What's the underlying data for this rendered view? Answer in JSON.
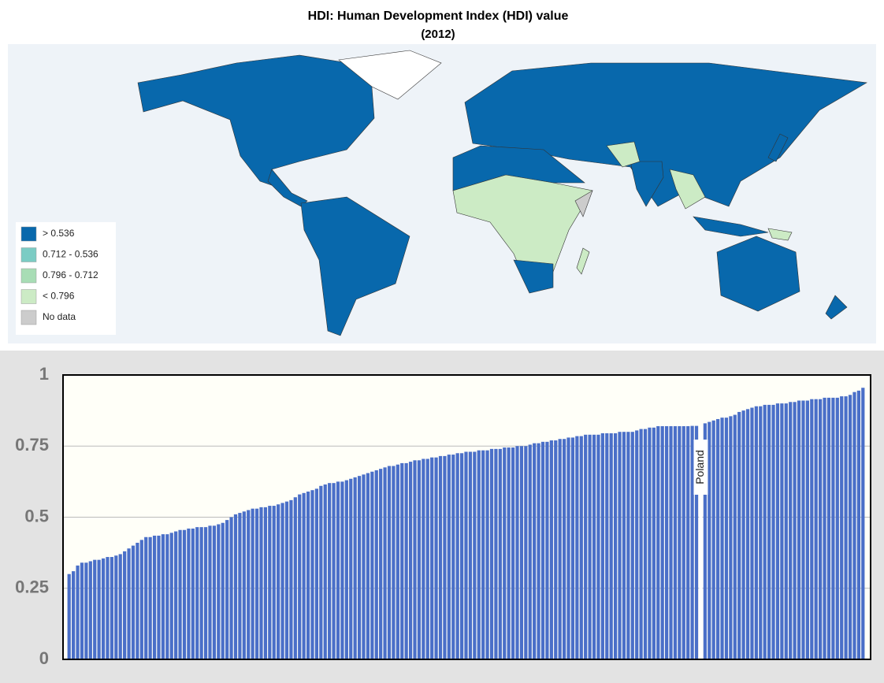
{
  "chart_data": [
    {
      "type": "map",
      "title": "HDI: Human Development Index (HDI) value",
      "subtitle": "(2012)",
      "legend": [
        {
          "label": "> 0.536",
          "color": "#0868ac"
        },
        {
          "label": "0.712 - 0.536",
          "color": "#7bccc4"
        },
        {
          "label": "0.796 - 0.712",
          "color": "#a8ddb5"
        },
        {
          "label": "< 0.796",
          "color": "#ccebc5"
        },
        {
          "label": "No data",
          "color": "#cccccc"
        }
      ]
    },
    {
      "type": "bar",
      "categories": [
        null,
        null,
        null,
        null,
        null,
        null,
        null,
        null,
        null,
        null,
        null,
        null,
        null,
        null,
        null,
        null,
        null,
        null,
        null,
        null,
        null,
        null,
        null,
        null,
        null,
        null,
        null,
        null,
        null,
        null,
        null,
        null,
        null,
        null,
        null,
        null,
        null,
        null,
        null,
        null,
        null,
        null,
        null,
        null,
        null,
        null,
        null,
        null,
        null,
        null,
        null,
        null,
        null,
        null,
        null,
        null,
        null,
        null,
        null,
        null,
        null,
        null,
        null,
        null,
        null,
        null,
        null,
        null,
        null,
        null,
        null,
        null,
        null,
        null,
        null,
        null,
        null,
        null,
        null,
        null,
        null,
        null,
        null,
        null,
        null,
        null,
        null,
        null,
        null,
        null,
        null,
        null,
        null,
        null,
        null,
        null,
        null,
        null,
        null,
        null,
        null,
        null,
        null,
        null,
        null,
        null,
        null,
        null,
        null,
        null,
        null,
        null,
        null,
        null,
        null,
        null,
        null,
        null,
        null,
        null,
        null,
        null,
        null,
        null,
        null,
        null,
        null,
        null,
        null,
        null,
        null,
        null,
        null,
        null,
        null,
        null,
        null,
        null,
        null,
        null,
        null,
        null,
        null,
        null,
        null,
        null,
        null,
        null,
        "Poland",
        null,
        null,
        null,
        null,
        null,
        null,
        null,
        null,
        null,
        null,
        null,
        null,
        null,
        null,
        null,
        null,
        null,
        null,
        null,
        null,
        null,
        null,
        null,
        null,
        null,
        null,
        null,
        null,
        null,
        null,
        null,
        null,
        null,
        null,
        null,
        null,
        null,
        null
      ],
      "values": [
        0.3,
        0.31,
        0.33,
        0.34,
        0.34,
        0.345,
        0.35,
        0.35,
        0.355,
        0.36,
        0.36,
        0.365,
        0.37,
        0.38,
        0.39,
        0.4,
        0.41,
        0.42,
        0.43,
        0.43,
        0.435,
        0.435,
        0.44,
        0.44,
        0.445,
        0.45,
        0.455,
        0.455,
        0.46,
        0.46,
        0.465,
        0.465,
        0.465,
        0.47,
        0.47,
        0.475,
        0.48,
        0.49,
        0.5,
        0.51,
        0.515,
        0.52,
        0.525,
        0.53,
        0.53,
        0.535,
        0.535,
        0.54,
        0.54,
        0.545,
        0.55,
        0.555,
        0.56,
        0.57,
        0.58,
        0.585,
        0.59,
        0.595,
        0.6,
        0.61,
        0.615,
        0.62,
        0.62,
        0.625,
        0.625,
        0.63,
        0.635,
        0.64,
        0.645,
        0.65,
        0.655,
        0.66,
        0.665,
        0.67,
        0.675,
        0.68,
        0.68,
        0.685,
        0.69,
        0.69,
        0.695,
        0.7,
        0.7,
        0.705,
        0.705,
        0.71,
        0.71,
        0.715,
        0.715,
        0.72,
        0.72,
        0.725,
        0.725,
        0.73,
        0.73,
        0.73,
        0.735,
        0.735,
        0.735,
        0.74,
        0.74,
        0.74,
        0.745,
        0.745,
        0.745,
        0.75,
        0.75,
        0.75,
        0.755,
        0.76,
        0.76,
        0.765,
        0.765,
        0.77,
        0.77,
        0.775,
        0.775,
        0.78,
        0.78,
        0.785,
        0.785,
        0.79,
        0.79,
        0.79,
        0.79,
        0.795,
        0.795,
        0.795,
        0.795,
        0.8,
        0.8,
        0.8,
        0.8,
        0.805,
        0.81,
        0.81,
        0.815,
        0.815,
        0.82,
        0.82,
        0.82,
        0.82,
        0.82,
        0.82,
        0.82,
        0.82,
        0.821,
        0.821,
        0.821,
        0.83,
        0.835,
        0.84,
        0.845,
        0.85,
        0.85,
        0.855,
        0.86,
        0.87,
        0.875,
        0.88,
        0.885,
        0.89,
        0.89,
        0.895,
        0.895,
        0.895,
        0.9,
        0.9,
        0.9,
        0.905,
        0.905,
        0.91,
        0.91,
        0.91,
        0.915,
        0.915,
        0.915,
        0.92,
        0.92,
        0.92,
        0.92,
        0.925,
        0.925,
        0.93,
        0.94,
        0.945,
        0.955
      ],
      "color": "#4a6fc8",
      "highlight_color": "#ffffff",
      "ylim": [
        0,
        1
      ],
      "yticks": [
        0,
        0.25,
        0.5,
        0.75,
        1
      ],
      "grid": true
    }
  ]
}
